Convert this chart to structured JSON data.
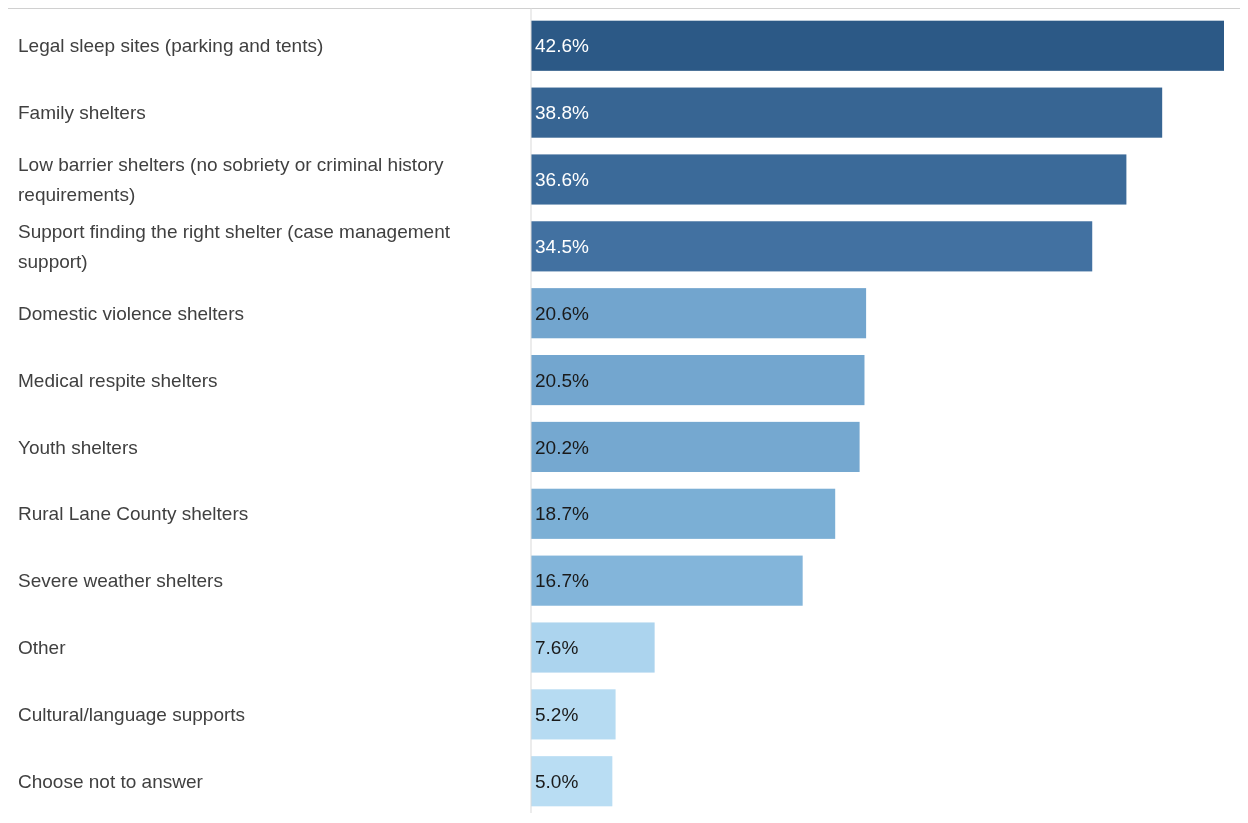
{
  "chart_data": {
    "type": "bar",
    "orientation": "horizontal",
    "categories": [
      "Legal sleep sites (parking and tents)",
      "Family shelters",
      "Low barrier shelters (no sobriety or criminal history requirements)",
      "Support finding the right shelter (case management support)",
      "Domestic violence shelters",
      "Medical respite shelters",
      "Youth shelters",
      "Rural Lane County shelters",
      "Severe weather shelters",
      "Other",
      "Cultural/language supports",
      "Choose not to answer"
    ],
    "values": [
      42.6,
      38.8,
      36.6,
      34.5,
      20.6,
      20.5,
      20.2,
      18.7,
      16.7,
      7.6,
      5.2,
      5.0
    ],
    "value_labels": [
      "42.6%",
      "38.8%",
      "36.6%",
      "34.5%",
      "20.6%",
      "20.5%",
      "20.2%",
      "18.7%",
      "16.7%",
      "7.6%",
      "5.2%",
      "5.0%"
    ],
    "colors": [
      "#2c5986",
      "#376593",
      "#3b6a99",
      "#4271a1",
      "#72a5ce",
      "#73a6cf",
      "#75a8d0",
      "#7bafd5",
      "#83b5da",
      "#acd4ee",
      "#b6dbf2",
      "#b9ddf3"
    ],
    "xlim": [
      0,
      42.6
    ],
    "tick_labels": "y"
  }
}
